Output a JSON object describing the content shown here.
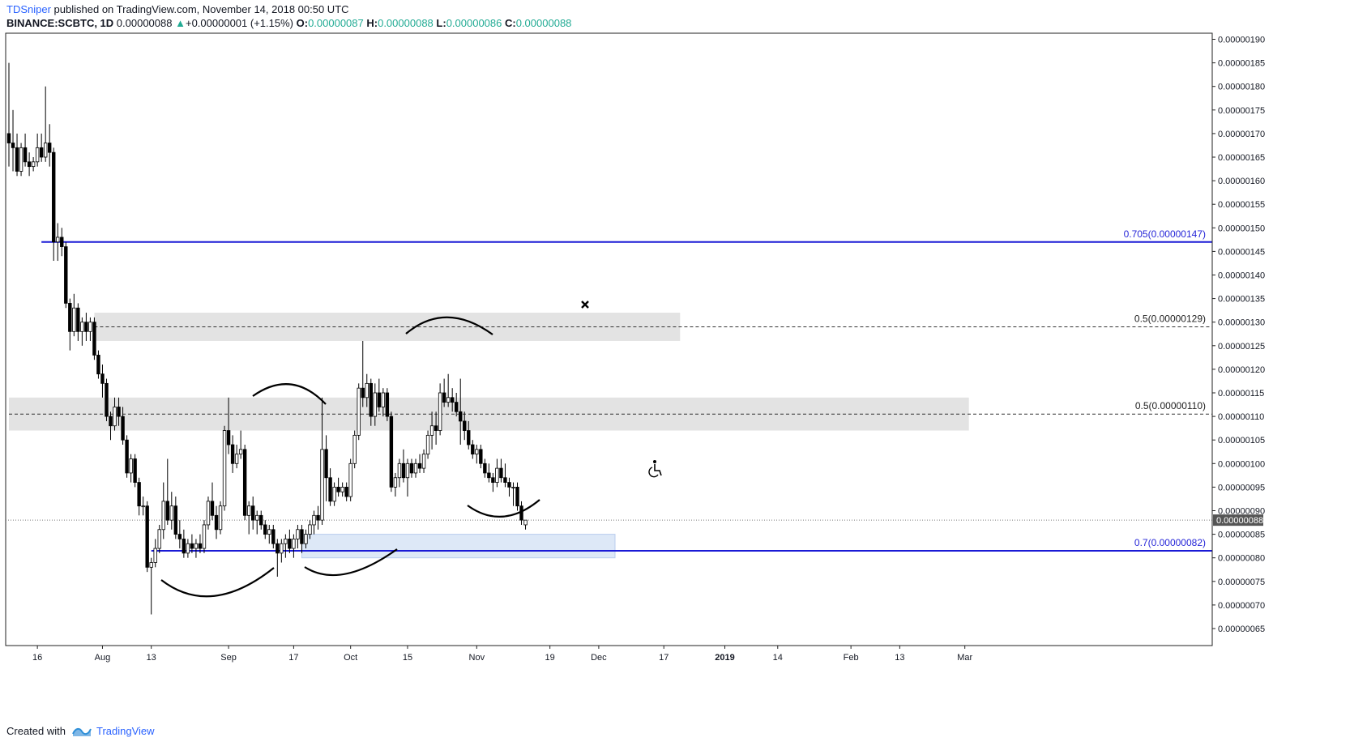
{
  "header": {
    "author": "TDSniper",
    "published": "published on TradingView.com, November 14, 2018 00:50 UTC",
    "symbol": "BINANCE:SCBTC, 1D",
    "last": "0.00000088",
    "change": "+0.00000001 (+1.15%)",
    "o_label": "O:",
    "o": "0.00000087",
    "h_label": "H:",
    "h": "0.00000088",
    "l_label": "L:",
    "l": "0.00000086",
    "c_label": "C:",
    "c": "0.00000088"
  },
  "footer": {
    "created_with": "Created with",
    "brand": "TradingView"
  },
  "colors": {
    "bull": "#ffffff",
    "bear": "#000000",
    "wick": "#000000",
    "fib_line": "#1a1ad6",
    "fib_text": "#2626d8",
    "zone": "#e3e3e3",
    "blue_zone": "#dde8f7",
    "blue_zone_border": "#b9cdee",
    "price_tag": "#555555"
  },
  "chart_data": {
    "type": "candlestick",
    "ylim": [
      6.2e-07,
      1.92e-06
    ],
    "y_ticks": [
      "0.00000190",
      "0.00000185",
      "0.00000180",
      "0.00000175",
      "0.00000170",
      "0.00000165",
      "0.00000160",
      "0.00000155",
      "0.00000150",
      "0.00000145",
      "0.00000140",
      "0.00000135",
      "0.00000130",
      "0.00000125",
      "0.00000120",
      "0.00000115",
      "0.00000110",
      "0.00000105",
      "0.00000100",
      "0.00000095",
      "0.00000090",
      "0.00000085",
      "0.00000080",
      "0.00000075",
      "0.00000070",
      "0.00000065"
    ],
    "x_ticks": [
      {
        "label": "16",
        "date": "2018-07-16"
      },
      {
        "label": "Aug",
        "date": "2018-08-01"
      },
      {
        "label": "13",
        "date": "2018-08-13"
      },
      {
        "label": "Sep",
        "date": "2018-09-01"
      },
      {
        "label": "17",
        "date": "2018-09-17"
      },
      {
        "label": "Oct",
        "date": "2018-10-01"
      },
      {
        "label": "15",
        "date": "2018-10-15"
      },
      {
        "label": "Nov",
        "date": "2018-11-01"
      },
      {
        "label": "19",
        "date": "2018-11-19"
      },
      {
        "label": "Dec",
        "date": "2018-12-01"
      },
      {
        "label": "17",
        "date": "2018-12-17"
      },
      {
        "label": "2019",
        "date": "2019-01-01",
        "bold": true
      },
      {
        "label": "14",
        "date": "2019-01-14"
      },
      {
        "label": "Feb",
        "date": "2019-02-01"
      },
      {
        "label": "13",
        "date": "2019-02-13"
      },
      {
        "label": "Mar",
        "date": "2019-03-01"
      }
    ],
    "candles": [
      {
        "d": "2018-07-09",
        "o": 170,
        "h": 185,
        "l": 163,
        "c": 168
      },
      {
        "d": "2018-07-10",
        "o": 168,
        "h": 175,
        "l": 162,
        "c": 167
      },
      {
        "d": "2018-07-11",
        "o": 167,
        "h": 170,
        "l": 161,
        "c": 162
      },
      {
        "d": "2018-07-12",
        "o": 162,
        "h": 168,
        "l": 161,
        "c": 167
      },
      {
        "d": "2018-07-13",
        "o": 167,
        "h": 170,
        "l": 163,
        "c": 164
      },
      {
        "d": "2018-07-14",
        "o": 164,
        "h": 166,
        "l": 161,
        "c": 163
      },
      {
        "d": "2018-07-15",
        "o": 163,
        "h": 165,
        "l": 162,
        "c": 164
      },
      {
        "d": "2018-07-16",
        "o": 164,
        "h": 170,
        "l": 163,
        "c": 167
      },
      {
        "d": "2018-07-17",
        "o": 167,
        "h": 170,
        "l": 164,
        "c": 165
      },
      {
        "d": "2018-07-18",
        "o": 165,
        "h": 180,
        "l": 164,
        "c": 168
      },
      {
        "d": "2018-07-19",
        "o": 168,
        "h": 172,
        "l": 163,
        "c": 166
      },
      {
        "d": "2018-07-20",
        "o": 166,
        "h": 167,
        "l": 143,
        "c": 147
      },
      {
        "d": "2018-07-21",
        "o": 147,
        "h": 151,
        "l": 143,
        "c": 148
      },
      {
        "d": "2018-07-22",
        "o": 148,
        "h": 150,
        "l": 144,
        "c": 146
      },
      {
        "d": "2018-07-23",
        "o": 146,
        "h": 147,
        "l": 133,
        "c": 134
      },
      {
        "d": "2018-07-24",
        "o": 134,
        "h": 135,
        "l": 124,
        "c": 128
      },
      {
        "d": "2018-07-25",
        "o": 128,
        "h": 136,
        "l": 127,
        "c": 133
      },
      {
        "d": "2018-07-26",
        "o": 133,
        "h": 134,
        "l": 126,
        "c": 128
      },
      {
        "d": "2018-07-27",
        "o": 128,
        "h": 131,
        "l": 125,
        "c": 130
      },
      {
        "d": "2018-07-28",
        "o": 130,
        "h": 132,
        "l": 126,
        "c": 128
      },
      {
        "d": "2018-07-29",
        "o": 128,
        "h": 131,
        "l": 126,
        "c": 130
      },
      {
        "d": "2018-07-30",
        "o": 130,
        "h": 131,
        "l": 122,
        "c": 123
      },
      {
        "d": "2018-07-31",
        "o": 123,
        "h": 124,
        "l": 118,
        "c": 119
      },
      {
        "d": "2018-08-01",
        "o": 119,
        "h": 121,
        "l": 114,
        "c": 117
      },
      {
        "d": "2018-08-02",
        "o": 117,
        "h": 118,
        "l": 109,
        "c": 110
      },
      {
        "d": "2018-08-03",
        "o": 110,
        "h": 111,
        "l": 105,
        "c": 108
      },
      {
        "d": "2018-08-04",
        "o": 108,
        "h": 114,
        "l": 107,
        "c": 112
      },
      {
        "d": "2018-08-05",
        "o": 112,
        "h": 114,
        "l": 108,
        "c": 110
      },
      {
        "d": "2018-08-06",
        "o": 110,
        "h": 112,
        "l": 104,
        "c": 105
      },
      {
        "d": "2018-08-07",
        "o": 105,
        "h": 106,
        "l": 97,
        "c": 98
      },
      {
        "d": "2018-08-08",
        "o": 98,
        "h": 102,
        "l": 96,
        "c": 101
      },
      {
        "d": "2018-08-09",
        "o": 101,
        "h": 102,
        "l": 95,
        "c": 96
      },
      {
        "d": "2018-08-10",
        "o": 96,
        "h": 97,
        "l": 89,
        "c": 91
      },
      {
        "d": "2018-08-11",
        "o": 91,
        "h": 93,
        "l": 89,
        "c": 91
      },
      {
        "d": "2018-08-12",
        "o": 91,
        "h": 92,
        "l": 77,
        "c": 78
      },
      {
        "d": "2018-08-13",
        "o": 78,
        "h": 80,
        "l": 68,
        "c": 79
      },
      {
        "d": "2018-08-14",
        "o": 79,
        "h": 84,
        "l": 78,
        "c": 82
      },
      {
        "d": "2018-08-15",
        "o": 82,
        "h": 87,
        "l": 81,
        "c": 86
      },
      {
        "d": "2018-08-16",
        "o": 86,
        "h": 96,
        "l": 84,
        "c": 92
      },
      {
        "d": "2018-08-17",
        "o": 92,
        "h": 101,
        "l": 87,
        "c": 88
      },
      {
        "d": "2018-08-18",
        "o": 88,
        "h": 94,
        "l": 86,
        "c": 91
      },
      {
        "d": "2018-08-19",
        "o": 91,
        "h": 93,
        "l": 84,
        "c": 85
      },
      {
        "d": "2018-08-20",
        "o": 85,
        "h": 88,
        "l": 82,
        "c": 84
      },
      {
        "d": "2018-08-21",
        "o": 84,
        "h": 86,
        "l": 80,
        "c": 81
      },
      {
        "d": "2018-08-22",
        "o": 81,
        "h": 84,
        "l": 80,
        "c": 83
      },
      {
        "d": "2018-08-23",
        "o": 83,
        "h": 85,
        "l": 81,
        "c": 82
      },
      {
        "d": "2018-08-24",
        "o": 82,
        "h": 84,
        "l": 80,
        "c": 83
      },
      {
        "d": "2018-08-25",
        "o": 83,
        "h": 85,
        "l": 81,
        "c": 82
      },
      {
        "d": "2018-08-26",
        "o": 82,
        "h": 88,
        "l": 81,
        "c": 87
      },
      {
        "d": "2018-08-27",
        "o": 87,
        "h": 93,
        "l": 86,
        "c": 92
      },
      {
        "d": "2018-08-28",
        "o": 92,
        "h": 96,
        "l": 88,
        "c": 89
      },
      {
        "d": "2018-08-29",
        "o": 89,
        "h": 91,
        "l": 84,
        "c": 86
      },
      {
        "d": "2018-08-30",
        "o": 86,
        "h": 92,
        "l": 85,
        "c": 91
      },
      {
        "d": "2018-08-31",
        "o": 91,
        "h": 108,
        "l": 90,
        "c": 107
      },
      {
        "d": "2018-09-01",
        "o": 107,
        "h": 114,
        "l": 102,
        "c": 104
      },
      {
        "d": "2018-09-02",
        "o": 104,
        "h": 106,
        "l": 98,
        "c": 100
      },
      {
        "d": "2018-09-03",
        "o": 100,
        "h": 104,
        "l": 99,
        "c": 102
      },
      {
        "d": "2018-09-04",
        "o": 102,
        "h": 107,
        "l": 101,
        "c": 103
      },
      {
        "d": "2018-09-05",
        "o": 103,
        "h": 104,
        "l": 88,
        "c": 89
      },
      {
        "d": "2018-09-06",
        "o": 89,
        "h": 92,
        "l": 85,
        "c": 91
      },
      {
        "d": "2018-09-07",
        "o": 91,
        "h": 93,
        "l": 86,
        "c": 88
      },
      {
        "d": "2018-09-08",
        "o": 88,
        "h": 90,
        "l": 85,
        "c": 89
      },
      {
        "d": "2018-09-09",
        "o": 89,
        "h": 90,
        "l": 86,
        "c": 87
      },
      {
        "d": "2018-09-10",
        "o": 87,
        "h": 88,
        "l": 84,
        "c": 85
      },
      {
        "d": "2018-09-11",
        "o": 85,
        "h": 87,
        "l": 83,
        "c": 86
      },
      {
        "d": "2018-09-12",
        "o": 86,
        "h": 87,
        "l": 82,
        "c": 83
      },
      {
        "d": "2018-09-13",
        "o": 83,
        "h": 84,
        "l": 76,
        "c": 81
      },
      {
        "d": "2018-09-14",
        "o": 81,
        "h": 84,
        "l": 79,
        "c": 83
      },
      {
        "d": "2018-09-15",
        "o": 83,
        "h": 85,
        "l": 80,
        "c": 84
      },
      {
        "d": "2018-09-16",
        "o": 84,
        "h": 86,
        "l": 81,
        "c": 82
      },
      {
        "d": "2018-09-17",
        "o": 82,
        "h": 85,
        "l": 80,
        "c": 84
      },
      {
        "d": "2018-09-18",
        "o": 84,
        "h": 87,
        "l": 82,
        "c": 86
      },
      {
        "d": "2018-09-19",
        "o": 86,
        "h": 87,
        "l": 81,
        "c": 83
      },
      {
        "d": "2018-09-20",
        "o": 83,
        "h": 86,
        "l": 82,
        "c": 85
      },
      {
        "d": "2018-09-21",
        "o": 85,
        "h": 88,
        "l": 84,
        "c": 87
      },
      {
        "d": "2018-09-22",
        "o": 87,
        "h": 90,
        "l": 85,
        "c": 89
      },
      {
        "d": "2018-09-23",
        "o": 89,
        "h": 91,
        "l": 86,
        "c": 88
      },
      {
        "d": "2018-09-24",
        "o": 88,
        "h": 114,
        "l": 87,
        "c": 103
      },
      {
        "d": "2018-09-25",
        "o": 103,
        "h": 106,
        "l": 92,
        "c": 97
      },
      {
        "d": "2018-09-26",
        "o": 97,
        "h": 99,
        "l": 91,
        "c": 92
      },
      {
        "d": "2018-09-27",
        "o": 92,
        "h": 96,
        "l": 91,
        "c": 95
      },
      {
        "d": "2018-09-28",
        "o": 95,
        "h": 97,
        "l": 93,
        "c": 94
      },
      {
        "d": "2018-09-29",
        "o": 94,
        "h": 96,
        "l": 93,
        "c": 95
      },
      {
        "d": "2018-09-30",
        "o": 95,
        "h": 96,
        "l": 92,
        "c": 93
      },
      {
        "d": "2018-10-01",
        "o": 93,
        "h": 101,
        "l": 92,
        "c": 100
      },
      {
        "d": "2018-10-02",
        "o": 100,
        "h": 107,
        "l": 99,
        "c": 106
      },
      {
        "d": "2018-10-03",
        "o": 106,
        "h": 117,
        "l": 105,
        "c": 116
      },
      {
        "d": "2018-10-04",
        "o": 116,
        "h": 126,
        "l": 112,
        "c": 114
      },
      {
        "d": "2018-10-05",
        "o": 114,
        "h": 119,
        "l": 112,
        "c": 117
      },
      {
        "d": "2018-10-06",
        "o": 117,
        "h": 118,
        "l": 108,
        "c": 110
      },
      {
        "d": "2018-10-07",
        "o": 110,
        "h": 117,
        "l": 108,
        "c": 115
      },
      {
        "d": "2018-10-08",
        "o": 115,
        "h": 118,
        "l": 111,
        "c": 112
      },
      {
        "d": "2018-10-09",
        "o": 112,
        "h": 116,
        "l": 110,
        "c": 115
      },
      {
        "d": "2018-10-10",
        "o": 115,
        "h": 116,
        "l": 109,
        "c": 110
      },
      {
        "d": "2018-10-11",
        "o": 110,
        "h": 111,
        "l": 94,
        "c": 95
      },
      {
        "d": "2018-10-12",
        "o": 95,
        "h": 98,
        "l": 93,
        "c": 97
      },
      {
        "d": "2018-10-13",
        "o": 97,
        "h": 101,
        "l": 95,
        "c": 100
      },
      {
        "d": "2018-10-14",
        "o": 100,
        "h": 103,
        "l": 96,
        "c": 97
      },
      {
        "d": "2018-10-15",
        "o": 97,
        "h": 101,
        "l": 93,
        "c": 100
      },
      {
        "d": "2018-10-16",
        "o": 100,
        "h": 101,
        "l": 97,
        "c": 98
      },
      {
        "d": "2018-10-17",
        "o": 98,
        "h": 101,
        "l": 97,
        "c": 100
      },
      {
        "d": "2018-10-18",
        "o": 100,
        "h": 102,
        "l": 98,
        "c": 99
      },
      {
        "d": "2018-10-19",
        "o": 99,
        "h": 103,
        "l": 98,
        "c": 102
      },
      {
        "d": "2018-10-20",
        "o": 102,
        "h": 107,
        "l": 101,
        "c": 106
      },
      {
        "d": "2018-10-21",
        "o": 106,
        "h": 111,
        "l": 103,
        "c": 108
      },
      {
        "d": "2018-10-22",
        "o": 108,
        "h": 111,
        "l": 104,
        "c": 107
      },
      {
        "d": "2018-10-23",
        "o": 107,
        "h": 117,
        "l": 106,
        "c": 115
      },
      {
        "d": "2018-10-24",
        "o": 115,
        "h": 118,
        "l": 112,
        "c": 113
      },
      {
        "d": "2018-10-25",
        "o": 113,
        "h": 119,
        "l": 112,
        "c": 114
      },
      {
        "d": "2018-10-26",
        "o": 114,
        "h": 116,
        "l": 111,
        "c": 113
      },
      {
        "d": "2018-10-27",
        "o": 113,
        "h": 115,
        "l": 110,
        "c": 111
      },
      {
        "d": "2018-10-28",
        "o": 111,
        "h": 118,
        "l": 104,
        "c": 109
      },
      {
        "d": "2018-10-29",
        "o": 109,
        "h": 111,
        "l": 105,
        "c": 107
      },
      {
        "d": "2018-10-30",
        "o": 107,
        "h": 109,
        "l": 103,
        "c": 104
      },
      {
        "d": "2018-10-31",
        "o": 104,
        "h": 105,
        "l": 101,
        "c": 102
      },
      {
        "d": "2018-11-01",
        "o": 102,
        "h": 104,
        "l": 100,
        "c": 103
      },
      {
        "d": "2018-11-02",
        "o": 103,
        "h": 104,
        "l": 99,
        "c": 100
      },
      {
        "d": "2018-11-03",
        "o": 100,
        "h": 101,
        "l": 97,
        "c": 98
      },
      {
        "d": "2018-11-04",
        "o": 98,
        "h": 100,
        "l": 96,
        "c": 97
      },
      {
        "d": "2018-11-05",
        "o": 97,
        "h": 98,
        "l": 94,
        "c": 96
      },
      {
        "d": "2018-11-06",
        "o": 96,
        "h": 101,
        "l": 95,
        "c": 99
      },
      {
        "d": "2018-11-07",
        "o": 99,
        "h": 101,
        "l": 96,
        "c": 97
      },
      {
        "d": "2018-11-08",
        "o": 97,
        "h": 100,
        "l": 95,
        "c": 96
      },
      {
        "d": "2018-11-09",
        "o": 96,
        "h": 97,
        "l": 93,
        "c": 95
      },
      {
        "d": "2018-11-10",
        "o": 95,
        "h": 96,
        "l": 91,
        "c": 95
      },
      {
        "d": "2018-11-11",
        "o": 95,
        "h": 96,
        "l": 90,
        "c": 91
      },
      {
        "d": "2018-11-12",
        "o": 91,
        "h": 92,
        "l": 87,
        "c": 88
      },
      {
        "d": "2018-11-13",
        "o": 87,
        "h": 88,
        "l": 86,
        "c": 88
      }
    ],
    "fib_levels": [
      {
        "label": "0.705(0.00000147)",
        "value": 147,
        "color": "fib",
        "start": "2018-07-17"
      },
      {
        "label": "0.5(0.00000129)",
        "value": 129,
        "color": "dark",
        "start": "2018-07-30"
      },
      {
        "label": "0.5(0.00000110)",
        "value": 110.5,
        "color": "dark",
        "start": "2018-07-09"
      },
      {
        "label": "0.7(0.00000082)",
        "value": 81.5,
        "color": "fib",
        "start": "2018-08-13"
      }
    ],
    "zones": [
      {
        "kind": "grey",
        "from": "2018-07-30",
        "to": "2018-12-21",
        "y1": 132,
        "y2": 126
      },
      {
        "kind": "grey",
        "from": "2018-07-09",
        "to": "2019-03-02",
        "y1": 114,
        "y2": 107
      },
      {
        "kind": "blue",
        "from": "2018-09-19",
        "to": "2018-12-05",
        "y1": 85,
        "y2": 80
      }
    ],
    "last_price": "0.00000088",
    "last_value": 88
  }
}
